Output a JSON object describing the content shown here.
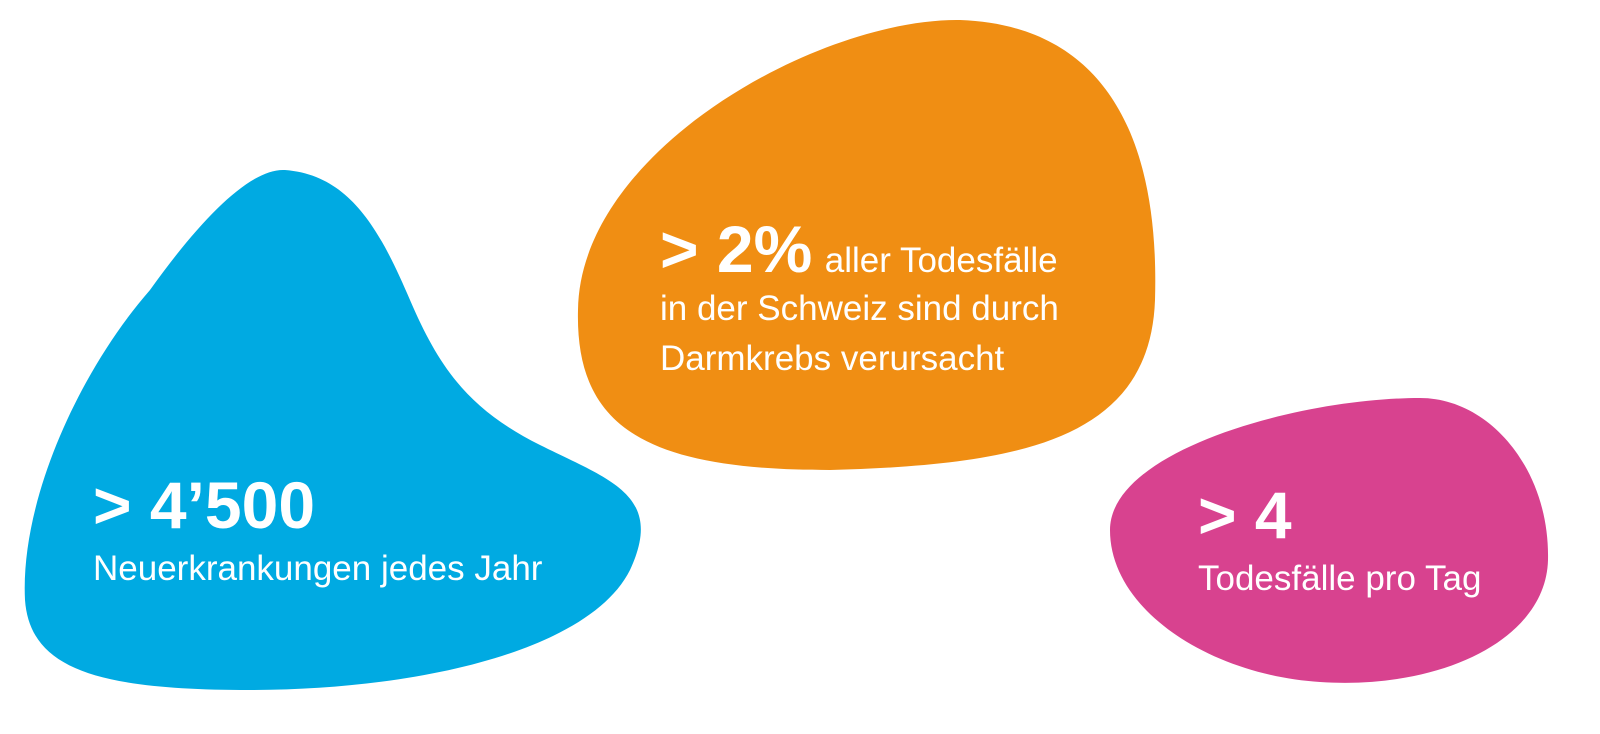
{
  "stats": [
    {
      "value": "> 4’500",
      "lines": [
        "Neuerkrankungen jedes Jahr"
      ]
    },
    {
      "value": "> 2%",
      "lines": [
        "aller Todesfälle",
        "in der Schweiz sind durch",
        "Darmkrebs verursacht"
      ]
    },
    {
      "value": "> 4",
      "lines": [
        "Todesfälle pro Tag"
      ]
    }
  ]
}
